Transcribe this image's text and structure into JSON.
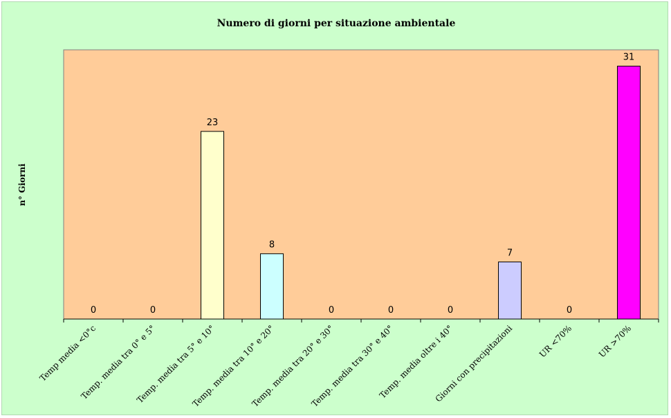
{
  "chart_data": {
    "type": "bar",
    "title": "Numero di giorni per situazione ambientale",
    "ylabel": "n° Giorni",
    "xlabel": "",
    "ylim": [
      0,
      33
    ],
    "grid": false,
    "legend": "none",
    "categories": [
      "Temp media <0°c",
      "Temp. media tra 0° e 5°",
      "Temp. media tra 5° e 10°",
      "Temp. media tra 10° e 20°",
      "Temp. media tra 20° e 30°",
      "Temp. media tra 30° e 40°",
      "Temp. media oltre i 40°",
      "Giorni con precipitazioni",
      "UR <70%",
      "UR >70%"
    ],
    "values": [
      0,
      0,
      23,
      8,
      0,
      0,
      0,
      7,
      0,
      31
    ],
    "colors": [
      "#9999ff",
      "#993366",
      "#ffffcc",
      "#ccffff",
      "#660066",
      "#ff8080",
      "#0066cc",
      "#ccccff",
      "#000080",
      "#ff00ff"
    ],
    "plot_background": "#ffcc99",
    "chart_background": "#ccffcc"
  }
}
